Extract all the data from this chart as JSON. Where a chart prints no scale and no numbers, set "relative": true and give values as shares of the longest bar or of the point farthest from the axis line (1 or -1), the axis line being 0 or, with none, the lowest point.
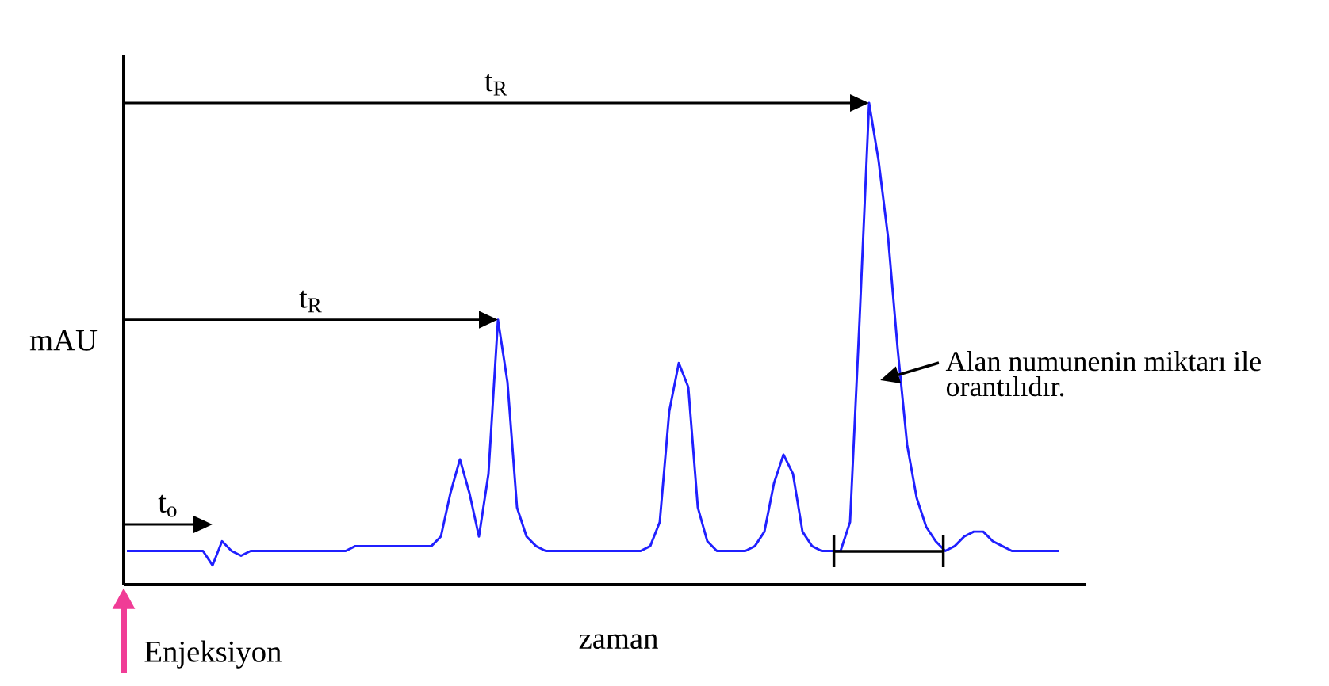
{
  "chart_data": {
    "type": "line",
    "relative": true,
    "color": "#2020ff",
    "xlabel": "zaman",
    "ylabel": "mAU",
    "categories": [
      null,
      null,
      null,
      null,
      null,
      null,
      null,
      null,
      null,
      null,
      null,
      null,
      null,
      null,
      null,
      null,
      null,
      null,
      null,
      null,
      null,
      null,
      null,
      null,
      null,
      null,
      null,
      null,
      null,
      null,
      null,
      null,
      null,
      null,
      null,
      null,
      null,
      null,
      null,
      null,
      null,
      null,
      null,
      null,
      null,
      null,
      null,
      null,
      null,
      null,
      null,
      null,
      null,
      null,
      null,
      null,
      null,
      null,
      null,
      null,
      null,
      null,
      null,
      null,
      null,
      null,
      null,
      null,
      null,
      null,
      null,
      null,
      null,
      null,
      null,
      null,
      null,
      null,
      null,
      null,
      null,
      null,
      null,
      null,
      null,
      null,
      null,
      null,
      null,
      null,
      null,
      null,
      null,
      null,
      null,
      null,
      null,
      null,
      null
    ],
    "values": [
      0.07,
      0.07,
      0.07,
      0.07,
      0.07,
      0.07,
      0.07,
      0.07,
      0.07,
      0.04,
      0.09,
      0.07,
      0.06,
      0.07,
      0.07,
      0.07,
      0.07,
      0.07,
      0.07,
      0.07,
      0.07,
      0.07,
      0.07,
      0.07,
      0.08,
      0.08,
      0.08,
      0.08,
      0.08,
      0.08,
      0.08,
      0.08,
      0.08,
      0.1,
      0.19,
      0.26,
      0.19,
      0.1,
      0.23,
      0.55,
      0.42,
      0.16,
      0.1,
      0.08,
      0.07,
      0.07,
      0.07,
      0.07,
      0.07,
      0.07,
      0.07,
      0.07,
      0.07,
      0.07,
      0.07,
      0.08,
      0.13,
      0.36,
      0.46,
      0.41,
      0.16,
      0.09,
      0.07,
      0.07,
      0.07,
      0.07,
      0.08,
      0.11,
      0.21,
      0.27,
      0.23,
      0.11,
      0.08,
      0.07,
      0.07,
      0.07,
      0.13,
      0.55,
      1.0,
      0.88,
      0.72,
      0.49,
      0.29,
      0.18,
      0.12,
      0.09,
      0.07,
      0.08,
      0.1,
      0.11,
      0.11,
      0.09,
      0.08,
      0.07,
      0.07,
      0.07,
      0.07,
      0.07,
      0.07
    ],
    "annotations": [
      "t$_{o}$",
      "t$_{R}$",
      "t$_{R}$",
      "Alan numunenin miktarı ile orantılıdır.",
      "Enjeksiyon"
    ]
  }
}
